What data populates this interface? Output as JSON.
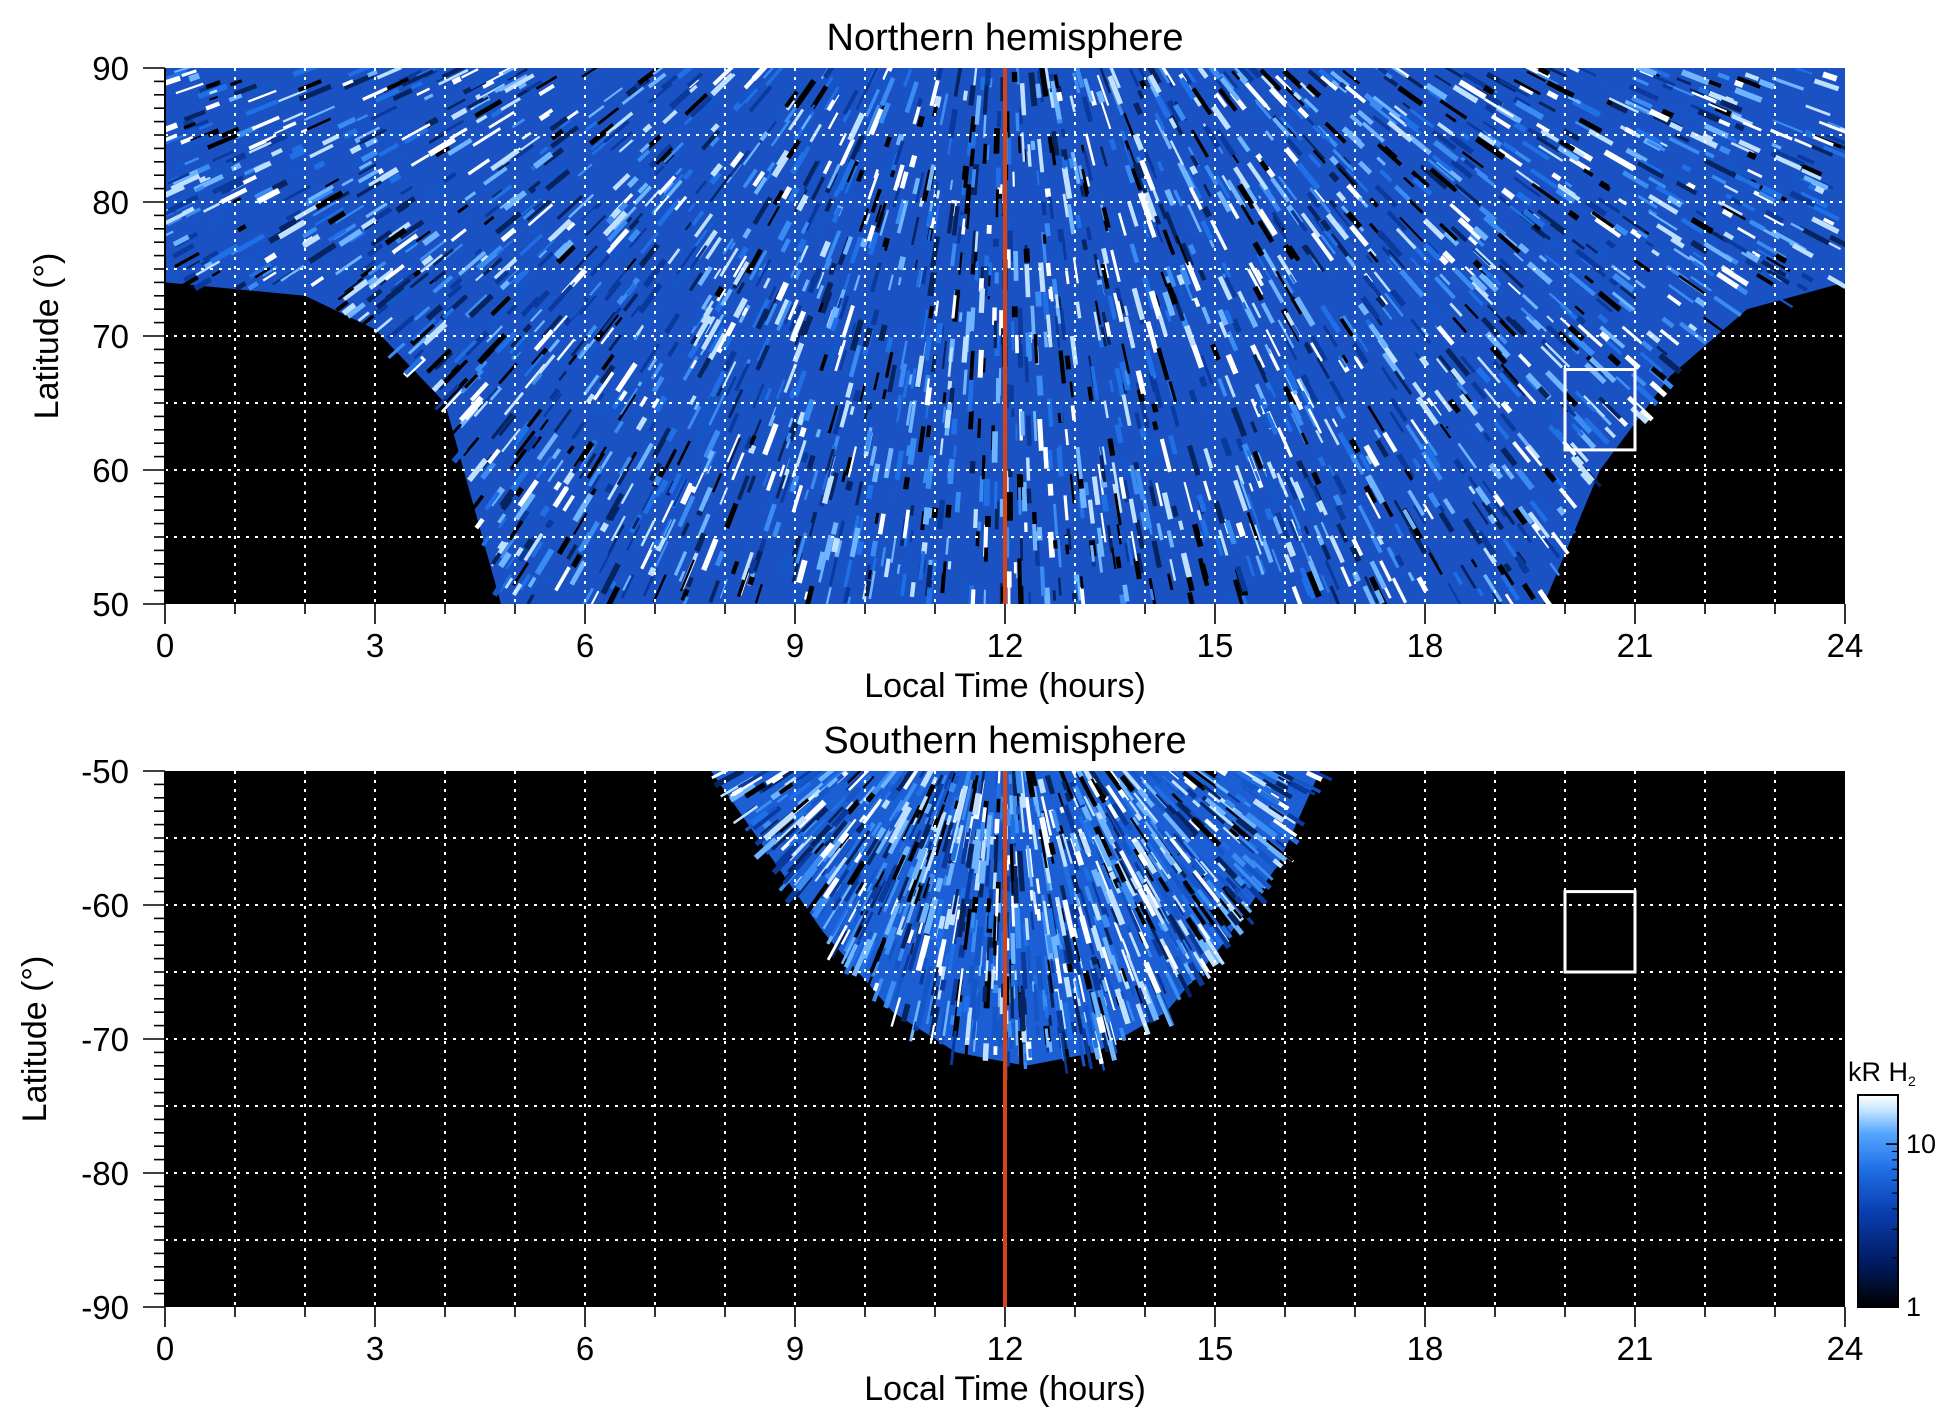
{
  "chart_data": [
    {
      "type": "heatmap",
      "title": "Northern hemisphere",
      "xlabel": "Local Time (hours)",
      "ylabel": "Latitude (°)",
      "xlim": [
        0,
        24
      ],
      "ylim": [
        50,
        90
      ],
      "x_ticks": [
        0,
        3,
        6,
        9,
        12,
        15,
        18,
        21,
        24
      ],
      "x_tick_labels": [
        "0",
        "3",
        "6",
        "9",
        "12",
        "15",
        "18",
        "21",
        "24"
      ],
      "y_ticks": [
        50,
        60,
        70,
        80,
        90
      ],
      "y_tick_labels": [
        "50",
        "60",
        "70",
        "80",
        "90"
      ],
      "x_grid_step": 1,
      "y_grid_step": 5,
      "grid": true,
      "noon_line_x": 12,
      "noon_line_color": "#d84315",
      "box": {
        "x": [
          20,
          21
        ],
        "y": [
          61.5,
          67.5
        ]
      },
      "coverage": "latitude 74°–90° at all local times; lower boundary follows the orbital footprint down to 50° between ~4.7 h and ~19.7 h",
      "coverage_boundary": [
        [
          0,
          74
        ],
        [
          2,
          73
        ],
        [
          3,
          70.5
        ],
        [
          4,
          65
        ],
        [
          4.8,
          50
        ],
        [
          19.7,
          50
        ],
        [
          20.5,
          60
        ],
        [
          21.5,
          67
        ],
        [
          22.6,
          72
        ],
        [
          23.3,
          73
        ],
        [
          24,
          74
        ]
      ]
    },
    {
      "type": "heatmap",
      "title": "Southern hemisphere",
      "xlabel": "Local Time (hours)",
      "ylabel": "Latitude (°)",
      "xlim": [
        0,
        24
      ],
      "ylim": [
        -90,
        -50
      ],
      "x_ticks": [
        0,
        3,
        6,
        9,
        12,
        15,
        18,
        21,
        24
      ],
      "x_tick_labels": [
        "0",
        "3",
        "6",
        "9",
        "12",
        "15",
        "18",
        "21",
        "24"
      ],
      "y_ticks": [
        -90,
        -80,
        -70,
        -60,
        -50
      ],
      "y_tick_labels": [
        "-90",
        "-80",
        "-70",
        "-60",
        "-50"
      ],
      "x_grid_step": 1,
      "y_grid_step": 5,
      "grid": true,
      "noon_line_x": 12,
      "noon_line_color": "#d84315",
      "box": {
        "x": [
          20,
          21
        ],
        "y": [
          -65,
          -59
        ]
      },
      "coverage": "dayside only: local time ~7.8 h to ~16.5 h, latitude -50° down to ~-72°",
      "coverage_boundary": [
        [
          7.8,
          -50
        ],
        [
          8.6,
          -56
        ],
        [
          9.4,
          -62
        ],
        [
          10.4,
          -68
        ],
        [
          11.3,
          -71
        ],
        [
          12.3,
          -72
        ],
        [
          13.3,
          -71
        ],
        [
          14.3,
          -68
        ],
        [
          15.1,
          -63
        ],
        [
          15.9,
          -57
        ],
        [
          16.5,
          -50
        ]
      ]
    }
  ],
  "colorbar": {
    "label_main": "kR H",
    "label_sub": "2",
    "scale": "log",
    "range": [
      1,
      20
    ],
    "tick_labels": [
      "1",
      "10"
    ],
    "tick_values": [
      1,
      10
    ],
    "colors": [
      "#000000",
      "#001a5e",
      "#0a3fb0",
      "#1f6fe6",
      "#56a6ff",
      "#c7e6ff",
      "#ffffff"
    ]
  }
}
